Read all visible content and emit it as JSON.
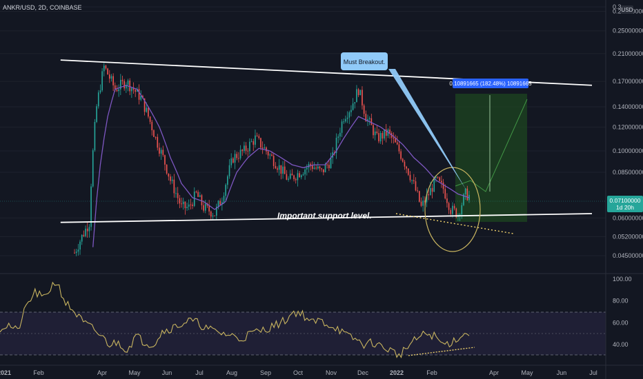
{
  "symbol_line": "ANKR/USD, 2D, COINBASE",
  "currency_badge": "USD",
  "colors": {
    "background": "#131722",
    "up": "#26a69a",
    "down": "#ef5350",
    "ma": "#7e57c2",
    "rsi": "#c9b560",
    "trendline": "#ffffff",
    "callout": "#90caf9",
    "target_box": "#1e4620",
    "measure_badge": "#2962ff",
    "price_badge": "#26a69a"
  },
  "annotations": {
    "breakout": "Must Breakout.",
    "support": "Important support level.",
    "measure": "0.10891665 (182.48%) 10891665"
  },
  "last_price": {
    "value": "0.07100000",
    "countdown": "1d 20h",
    "price": 0.071
  },
  "chart_data": [
    {
      "type": "candlestick",
      "scale": "log",
      "y_tick_labels": [
        "0.3",
        "0.29000000",
        "0.25000000",
        "0.21000000",
        "0.17000000",
        "0.14000000",
        "0.12000000",
        "0.10000000",
        "0.08500000",
        "0.06000000",
        "0.05200000",
        "0.04500000"
      ],
      "y_ticks": [
        0.3,
        0.29,
        0.25,
        0.21,
        0.17,
        0.14,
        0.12,
        0.1,
        0.085,
        0.06,
        0.052,
        0.045
      ],
      "x_tick_labels": [
        "2021",
        "Feb",
        "Apr",
        "May",
        "Jun",
        "Jul",
        "Aug",
        "Sep",
        "Oct",
        "Nov",
        "Dec",
        "2022",
        "Feb",
        "Apr",
        "May",
        "Jun",
        "Jul"
      ],
      "series_anchors": {
        "close": [
          [
            0,
            0.046
          ],
          [
            8,
            0.058
          ],
          [
            12,
            0.14
          ],
          [
            16,
            0.19
          ],
          [
            22,
            0.16
          ],
          [
            28,
            0.17
          ],
          [
            36,
            0.15
          ],
          [
            44,
            0.11
          ],
          [
            52,
            0.08
          ],
          [
            58,
            0.065
          ],
          [
            62,
            0.065
          ],
          [
            66,
            0.072
          ],
          [
            70,
            0.065
          ],
          [
            76,
            0.062
          ],
          [
            80,
            0.07
          ],
          [
            86,
            0.095
          ],
          [
            92,
            0.1
          ],
          [
            98,
            0.11
          ],
          [
            104,
            0.1
          ],
          [
            110,
            0.09
          ],
          [
            116,
            0.08
          ],
          [
            122,
            0.085
          ],
          [
            128,
            0.09
          ],
          [
            134,
            0.085
          ],
          [
            140,
            0.095
          ],
          [
            146,
            0.13
          ],
          [
            150,
            0.14
          ],
          [
            154,
            0.16
          ],
          [
            158,
            0.13
          ],
          [
            164,
            0.11
          ],
          [
            170,
            0.115
          ],
          [
            176,
            0.1
          ],
          [
            182,
            0.083
          ],
          [
            188,
            0.065
          ],
          [
            192,
            0.072
          ],
          [
            196,
            0.08
          ],
          [
            200,
            0.075
          ],
          [
            204,
            0.064
          ],
          [
            208,
            0.062
          ],
          [
            212,
            0.072
          ],
          [
            214,
            0.071
          ]
        ],
        "moving_average": [
          [
            10,
            0.048
          ],
          [
            14,
            0.09
          ],
          [
            18,
            0.13
          ],
          [
            22,
            0.16
          ],
          [
            28,
            0.165
          ],
          [
            34,
            0.16
          ],
          [
            40,
            0.14
          ],
          [
            46,
            0.12
          ],
          [
            52,
            0.095
          ],
          [
            58,
            0.078
          ],
          [
            64,
            0.07
          ],
          [
            70,
            0.068
          ],
          [
            76,
            0.064
          ],
          [
            82,
            0.068
          ],
          [
            88,
            0.085
          ],
          [
            94,
            0.095
          ],
          [
            100,
            0.102
          ],
          [
            106,
            0.1
          ],
          [
            112,
            0.095
          ],
          [
            118,
            0.09
          ],
          [
            124,
            0.088
          ],
          [
            130,
            0.09
          ],
          [
            136,
            0.09
          ],
          [
            142,
            0.1
          ],
          [
            148,
            0.115
          ],
          [
            154,
            0.13
          ],
          [
            160,
            0.125
          ],
          [
            166,
            0.12
          ],
          [
            172,
            0.113
          ],
          [
            178,
            0.105
          ],
          [
            184,
            0.095
          ],
          [
            190,
            0.088
          ],
          [
            196,
            0.08
          ],
          [
            202,
            0.076
          ],
          [
            208,
            0.072
          ],
          [
            214,
            0.07
          ]
        ]
      },
      "upper_trendline": [
        [
          0.1,
          0.2
        ],
        [
          1.0,
          0.165
        ]
      ],
      "lower_trendline": [
        [
          0.1,
          0.058
        ],
        [
          1.0,
          0.062
        ]
      ]
    },
    {
      "type": "line",
      "name": "RSI",
      "y_tick_labels": [
        "100.00",
        "80.00",
        "60.00",
        "40.00"
      ],
      "y_ticks": [
        100,
        80,
        60,
        40
      ],
      "y_range": [
        20,
        100
      ],
      "series_anchors": [
        [
          0,
          55
        ],
        [
          4,
          58
        ],
        [
          8,
          52
        ],
        [
          12,
          75
        ],
        [
          16,
          88
        ],
        [
          20,
          82
        ],
        [
          24,
          95
        ],
        [
          26,
          97
        ],
        [
          30,
          78
        ],
        [
          34,
          70
        ],
        [
          38,
          60
        ],
        [
          42,
          55
        ],
        [
          46,
          48
        ],
        [
          50,
          40
        ],
        [
          54,
          42
        ],
        [
          58,
          35
        ],
        [
          62,
          48
        ],
        [
          66,
          42
        ],
        [
          70,
          40
        ],
        [
          74,
          52
        ],
        [
          78,
          55
        ],
        [
          82,
          58
        ],
        [
          86,
          62
        ],
        [
          90,
          60
        ],
        [
          94,
          55
        ],
        [
          98,
          52
        ],
        [
          102,
          50
        ],
        [
          106,
          48
        ],
        [
          110,
          45
        ],
        [
          114,
          50
        ],
        [
          118,
          52
        ],
        [
          122,
          55
        ],
        [
          126,
          58
        ],
        [
          130,
          62
        ],
        [
          134,
          70
        ],
        [
          138,
          68
        ],
        [
          142,
          60
        ],
        [
          146,
          62
        ],
        [
          150,
          58
        ],
        [
          154,
          55
        ],
        [
          158,
          48
        ],
        [
          162,
          45
        ],
        [
          166,
          40
        ],
        [
          170,
          42
        ],
        [
          174,
          38
        ],
        [
          178,
          35
        ],
        [
          182,
          30
        ],
        [
          186,
          38
        ],
        [
          190,
          45
        ],
        [
          194,
          50
        ],
        [
          198,
          48
        ],
        [
          202,
          40
        ],
        [
          206,
          42
        ],
        [
          210,
          48
        ],
        [
          214,
          50
        ]
      ]
    }
  ]
}
